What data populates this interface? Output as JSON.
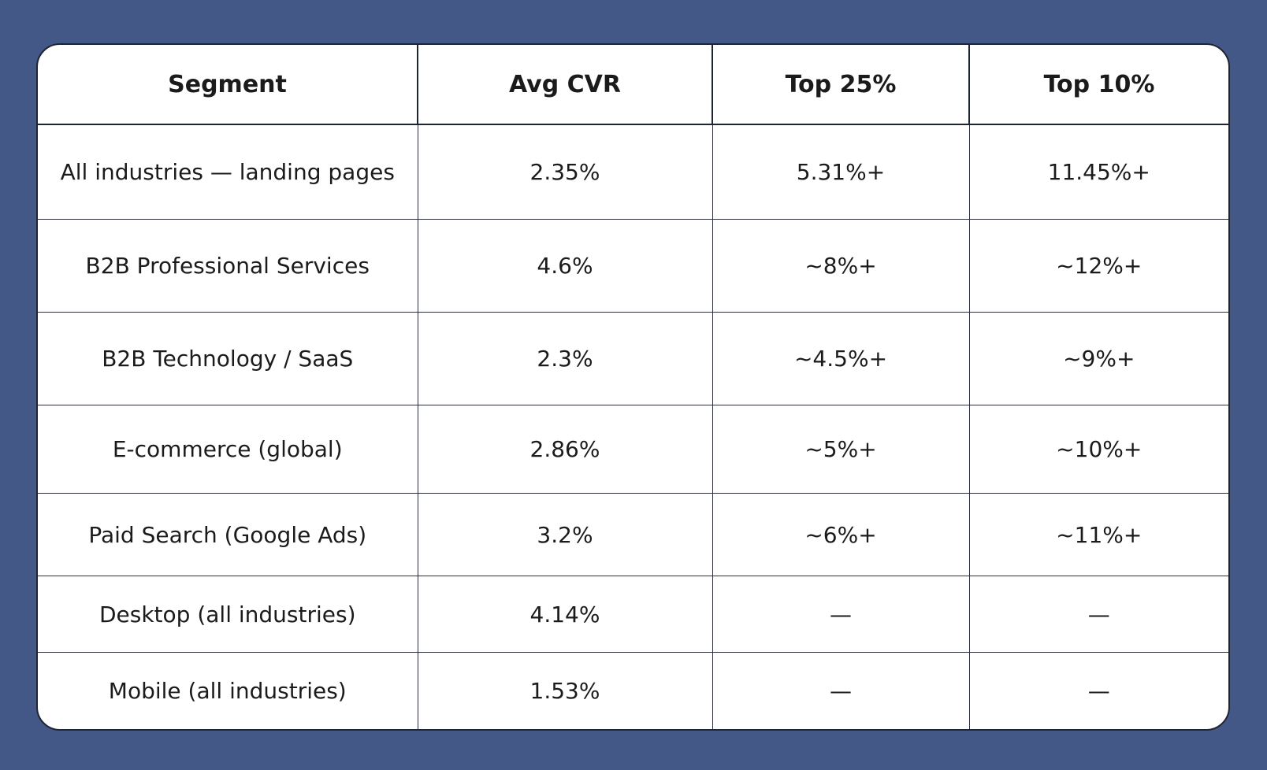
{
  "chart_data": {
    "type": "table",
    "columns": [
      "Segment",
      "Avg CVR",
      "Top 25%",
      "Top 10%"
    ],
    "rows": [
      {
        "segment": "All industries — landing pages",
        "avg_cvr": "2.35%",
        "top_25": "5.31%+",
        "top_10": "11.45%+"
      },
      {
        "segment": "B2B Professional Services",
        "avg_cvr": "4.6%",
        "top_25": "~8%+",
        "top_10": "~12%+"
      },
      {
        "segment": "B2B Technology / SaaS",
        "avg_cvr": "2.3%",
        "top_25": "~4.5%+",
        "top_10": "~9%+"
      },
      {
        "segment": "E-commerce (global)",
        "avg_cvr": "2.86%",
        "top_25": "~5%+",
        "top_10": "~10%+"
      },
      {
        "segment": "Paid Search (Google Ads)",
        "avg_cvr": "3.2%",
        "top_25": "~6%+",
        "top_10": "~11%+"
      },
      {
        "segment": "Desktop (all industries)",
        "avg_cvr": "4.14%",
        "top_25": "—",
        "top_10": "—"
      },
      {
        "segment": "Mobile (all industries)",
        "avg_cvr": "1.53%",
        "top_25": "—",
        "top_10": "—"
      }
    ]
  },
  "colors": {
    "background": "#435886",
    "card": "#ffffff",
    "border": "#1f2433",
    "text": "#1b1b1b"
  }
}
